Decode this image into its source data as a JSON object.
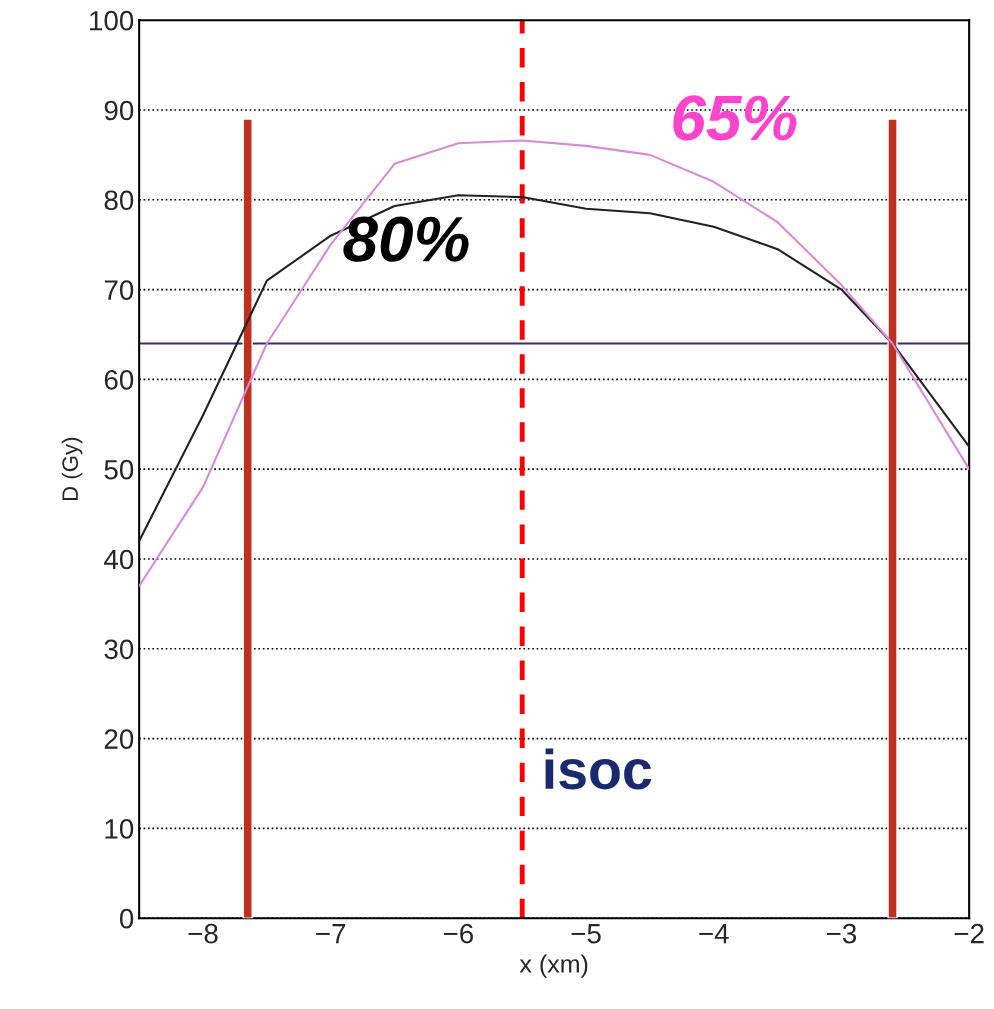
{
  "chart_data": {
    "type": "line",
    "xlabel": "x (xm)",
    "ylabel": "D (Gy)",
    "xlim": [
      -8.5,
      -2
    ],
    "xticks": [
      {
        "value": -8,
        "label": "−8"
      },
      {
        "value": -7,
        "label": "−7"
      },
      {
        "value": -6,
        "label": "−6"
      },
      {
        "value": -5,
        "label": "−5"
      },
      {
        "value": -4,
        "label": "−4"
      },
      {
        "value": -3,
        "label": "−3"
      },
      {
        "value": -2,
        "label": "−2"
      }
    ],
    "ylim": [
      0,
      100
    ],
    "yticks": [
      0,
      10,
      20,
      30,
      40,
      50,
      60,
      70,
      80,
      90,
      100
    ],
    "grid": "y",
    "series": [
      {
        "color": "#222222",
        "x": [
          -8.5,
          -8,
          -7.5,
          -7,
          -6.5,
          -6,
          -5.5,
          -5,
          -4.5,
          -4,
          -3.5,
          -3,
          -2.6,
          -2
        ],
        "values": [
          42,
          56,
          71,
          76,
          79.3,
          80.5,
          80.3,
          79,
          78.5,
          77,
          74.5,
          70,
          64,
          52.5
        ]
      },
      {
        "color": "#d98ad9",
        "x": [
          -8.5,
          -8,
          -7.5,
          -7,
          -6.5,
          -6,
          -5.5,
          -5,
          -4.5,
          -4,
          -3.5,
          -3,
          -2.6,
          -2
        ],
        "values": [
          37,
          48,
          64,
          75,
          84,
          86.3,
          86.6,
          86,
          85,
          82,
          77.5,
          70.5,
          64,
          50
        ]
      },
      {
        "type": "bar",
        "color": "#c0301f",
        "x": [
          -7.65,
          -2.6
        ],
        "values": [
          89,
          89
        ]
      }
    ],
    "ref_lines": [
      {
        "axis": "y",
        "value": 64,
        "color": "#3d2a6e",
        "line_style": "solid"
      },
      {
        "axis": "x",
        "value": -5.5,
        "color": "#ff0000",
        "line_style": "dashed"
      }
    ],
    "annotations": [
      "80%",
      "65%",
      "isoc"
    ]
  }
}
